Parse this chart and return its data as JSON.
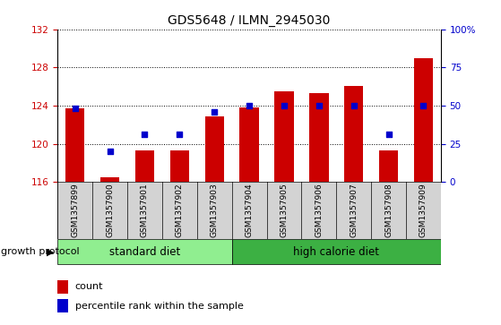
{
  "title": "GDS5648 / ILMN_2945030",
  "samples": [
    "GSM1357899",
    "GSM1357900",
    "GSM1357901",
    "GSM1357902",
    "GSM1357903",
    "GSM1357904",
    "GSM1357905",
    "GSM1357906",
    "GSM1357907",
    "GSM1357908",
    "GSM1357909"
  ],
  "count_values": [
    123.7,
    116.5,
    119.3,
    119.3,
    122.9,
    123.8,
    125.5,
    125.3,
    126.1,
    119.3,
    129.0
  ],
  "percentile_values": [
    48,
    20,
    31,
    31,
    46,
    50,
    50,
    50,
    50,
    31,
    50
  ],
  "ylim_left": [
    116,
    132
  ],
  "ylim_right": [
    0,
    100
  ],
  "yticks_left": [
    116,
    120,
    124,
    128,
    132
  ],
  "yticks_right": [
    0,
    25,
    50,
    75,
    100
  ],
  "bar_color": "#cc0000",
  "dot_color": "#0000cc",
  "bar_bottom": 116,
  "group1_label": "standard diet",
  "group2_label": "high calorie diet",
  "group1_indices": [
    0,
    1,
    2,
    3,
    4
  ],
  "group2_indices": [
    5,
    6,
    7,
    8,
    9,
    10
  ],
  "group_protocol_label": "growth protocol",
  "legend_count_label": "count",
  "legend_percentile_label": "percentile rank within the sample",
  "tick_color_left": "#cc0000",
  "tick_color_right": "#0000cc",
  "background_xticklabels": "#d3d3d3",
  "group1_bg": "#90ee90",
  "group2_bg": "#3cb043",
  "grid_linestyle": "dotted"
}
